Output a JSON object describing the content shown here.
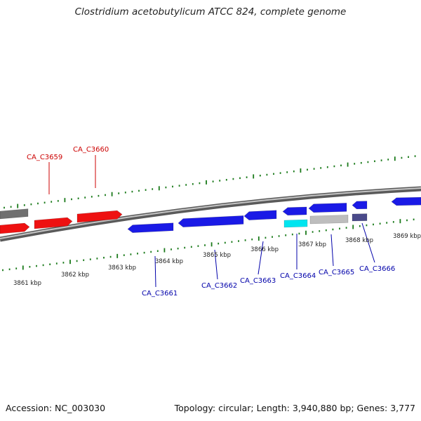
{
  "title": "Clostridium acetobutylicum ATCC 824, complete genome",
  "footer": {
    "accession": "Accession: NC_003030",
    "summary": "Topology: circular; Length: 3,940,880 bp; Genes: 3,777"
  },
  "colors": {
    "forward_gene": "#ee1111",
    "reverse_gene": "#1a1ae6",
    "highlight_gene": "#00e5f0",
    "pseudo_gene": "#bdbdbd",
    "dark_gene": "#4a4a8a",
    "gray_gene": "#707070",
    "tick": "#1a7a1a",
    "top_label": "#cc0000",
    "bottom_label": "#0000aa",
    "backbone": "#7f7f7f"
  },
  "kbp_ticks": [
    "3861 kbp",
    "3862 kbp",
    "3863 kbp",
    "3864 kbp",
    "3865 kbp",
    "3866 kbp",
    "3867 kbp",
    "3868 kbp",
    "3869 kbp"
  ],
  "top_gene_labels": [
    "CA_C3659",
    "CA_C3660"
  ],
  "bottom_gene_labels": [
    "CA_C3661",
    "CA_C3662",
    "CA_C3663",
    "CA_C3664",
    "CA_C3665",
    "CA_C3666"
  ]
}
